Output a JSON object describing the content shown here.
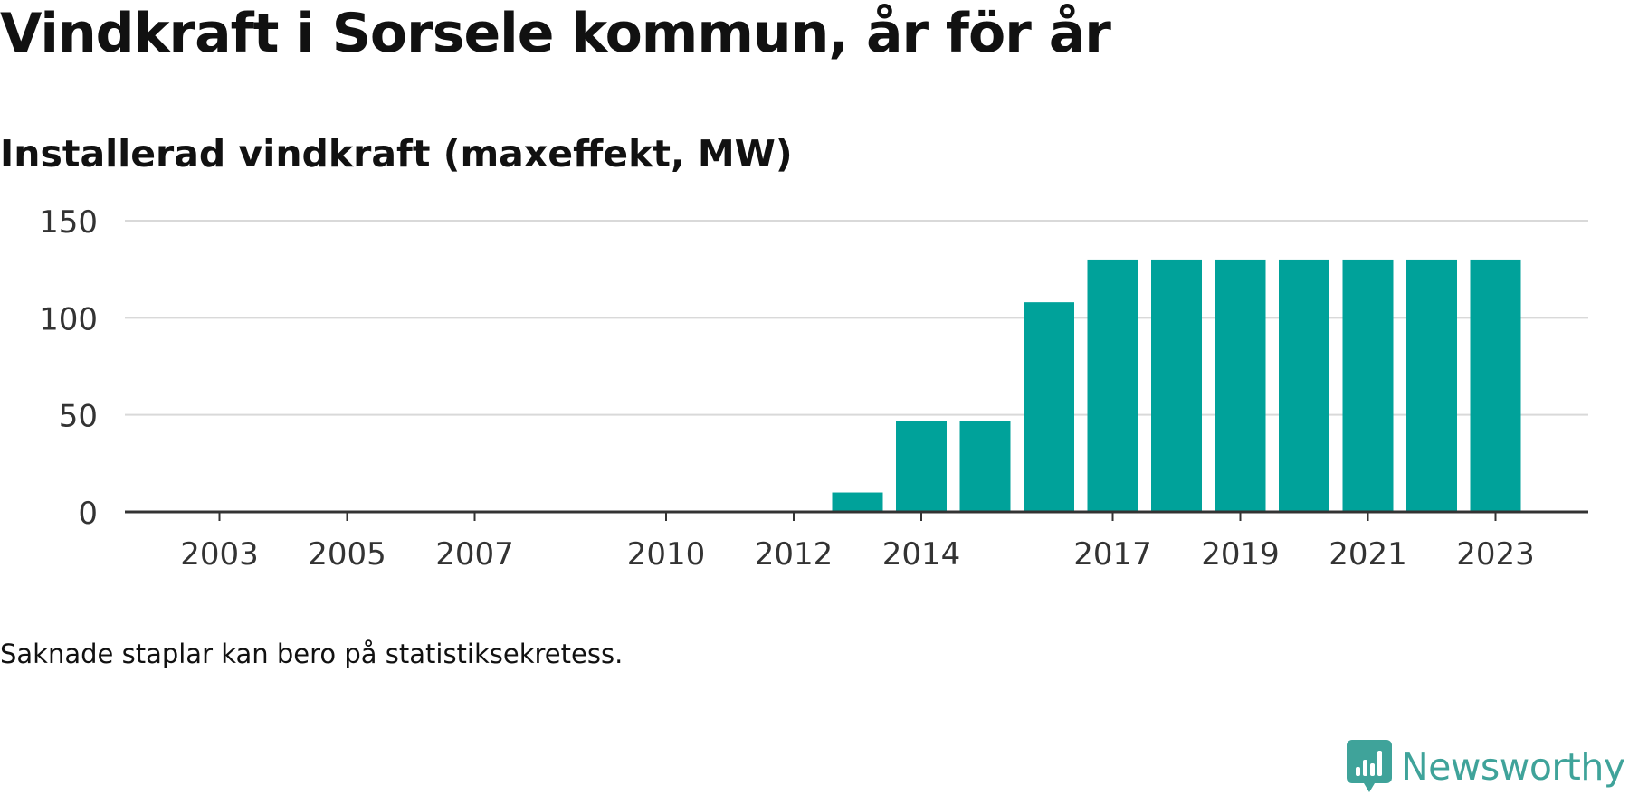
{
  "title": "Vindkraft i Sorsele kommun, år för år",
  "note": "Saknade staplar kan bero på statistiksekretess.",
  "brand": {
    "name": "Newsworthy",
    "icon": "newsworthy-logo-icon",
    "color": "#3fa39a"
  },
  "colors": {
    "bar": "#00a29a",
    "grid": "#d9d9d9",
    "axis": "#333333",
    "text": "#333333"
  },
  "chart_data": {
    "type": "bar",
    "title": "Installerad vindkraft (maxeffekt, MW)",
    "xlabel": "",
    "ylabel": "",
    "categories": [
      "2003",
      "2004",
      "2005",
      "2006",
      "2007",
      "2008",
      "2009",
      "2010",
      "2011",
      "2012",
      "2013",
      "2014",
      "2015",
      "2016",
      "2017",
      "2018",
      "2019",
      "2020",
      "2021",
      "2022",
      "2023"
    ],
    "values": [
      0,
      0,
      0,
      0,
      0,
      0,
      0,
      0,
      0,
      0,
      10,
      47,
      47,
      108,
      130,
      130,
      130,
      130,
      130,
      130,
      130
    ],
    "x_tick_labels": [
      "2003",
      "2005",
      "2007",
      "2010",
      "2012",
      "2014",
      "2017",
      "2019",
      "2021",
      "2023"
    ],
    "y_ticks": [
      0,
      50,
      100,
      150
    ],
    "ylim": [
      0,
      150
    ],
    "grid": true,
    "legend": "none"
  }
}
